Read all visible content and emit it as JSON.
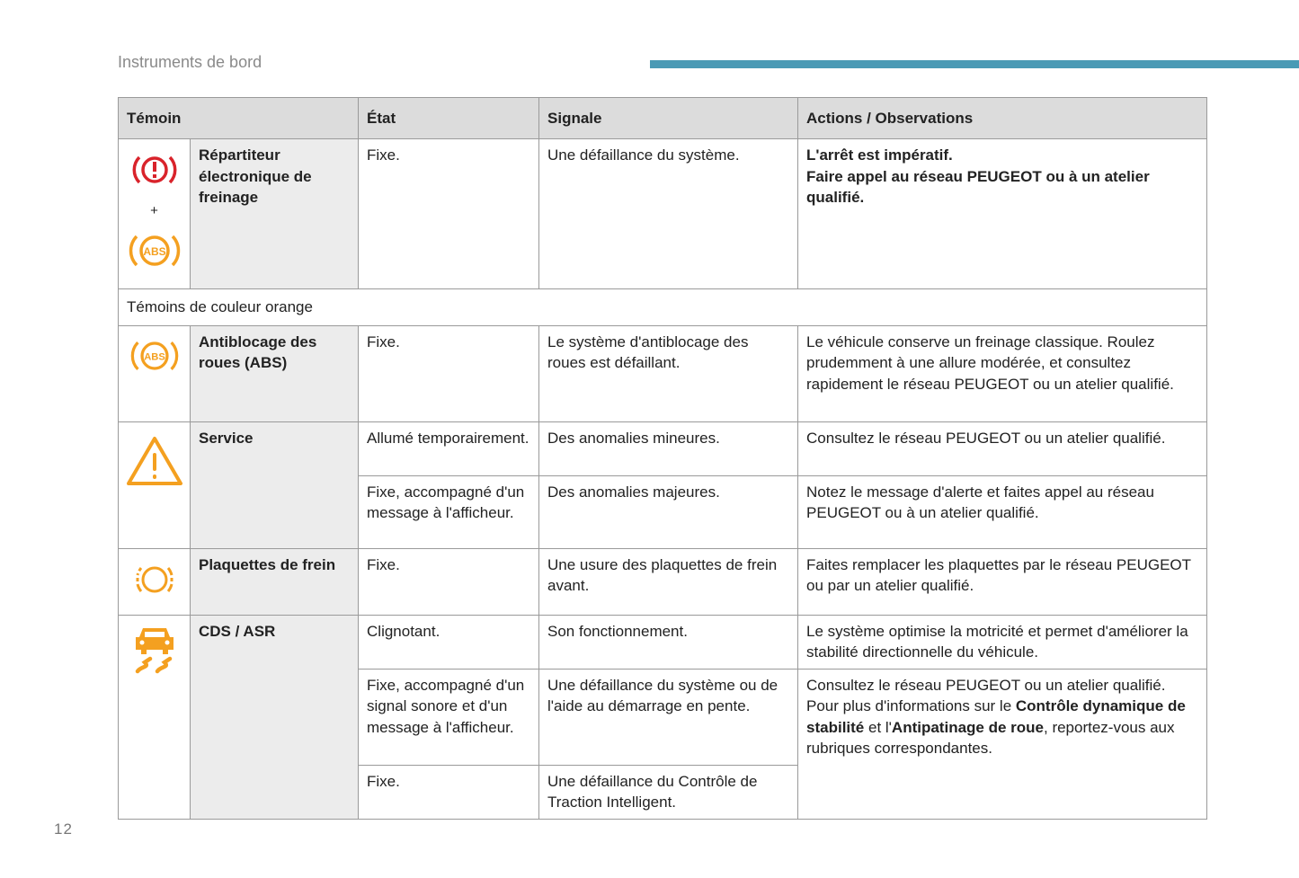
{
  "header": {
    "section_title": "Instruments de bord",
    "accent_color": "#4a9ab5",
    "page_number": "12"
  },
  "table": {
    "columns": [
      "Témoin",
      "État",
      "Signale",
      "Actions / Observations"
    ],
    "rows": [
      {
        "name": "Répartiteur électronique de freinage",
        "icons": [
          "brake-warning-icon",
          "abs-icon"
        ],
        "plus": "+",
        "etat": "Fixe.",
        "signale": "Une défaillance du système.",
        "actions": [
          "L'arrêt est impératif.",
          "Faire appel au réseau PEUGEOT ou à un atelier qualifié."
        ]
      },
      {
        "section": "Témoins de couleur orange"
      },
      {
        "name": "Antiblocage des roues (ABS)",
        "icon": "abs-icon",
        "etat": "Fixe.",
        "signale": "Le système d'antiblocage des roues est défaillant.",
        "actions": "Le véhicule conserve un freinage classique. Roulez prudemment à une allure modérée, et consultez rapidement le réseau PEUGEOT ou un atelier qualifié."
      },
      {
        "name": "Service",
        "icon": "warning-triangle-icon",
        "states": [
          {
            "etat": "Allumé temporairement.",
            "signale": "Des anomalies mineures.",
            "actions": "Consultez le réseau PEUGEOT ou un atelier qualifié."
          },
          {
            "etat": "Fixe, accompagné d'un message à l'afficheur.",
            "signale": "Des anomalies majeures.",
            "actions": "Notez le message d'alerte et faites appel au réseau PEUGEOT ou à un atelier qualifié."
          }
        ]
      },
      {
        "name": "Plaquettes de frein",
        "icon": "brake-pads-icon",
        "etat": "Fixe.",
        "signale": "Une usure des plaquettes de frein avant.",
        "actions": "Faites remplacer les plaquettes par le réseau PEUGEOT ou par un atelier qualifié."
      },
      {
        "name": "CDS / ASR",
        "icon": "skidding-car-icon",
        "states": [
          {
            "etat": "Clignotant.",
            "signale": "Son fonctionnement.",
            "actions": "Le système optimise la motricité et permet d'améliorer la stabilité directionnelle du véhicule."
          },
          {
            "etat": "Fixe, accompagné d'un signal sonore et d'un message à l'afficheur.",
            "signale": "Une défaillance du système ou de l'aide au démarrage en pente.",
            "actions_segments": [
              "Consultez le réseau PEUGEOT ou un atelier qualifié.",
              "Pour plus d'informations sur le ",
              "Contrôle dynamique de stabilité",
              " et l'",
              "Antipatinage de roue",
              ", reportez-vous aux rubriques correspondantes."
            ]
          },
          {
            "etat": "Fixe.",
            "signale": "Une défaillance du Contrôle de Traction Intelligent."
          }
        ]
      }
    ]
  },
  "colors": {
    "red": "#d9232b",
    "orange": "#f4a020"
  }
}
